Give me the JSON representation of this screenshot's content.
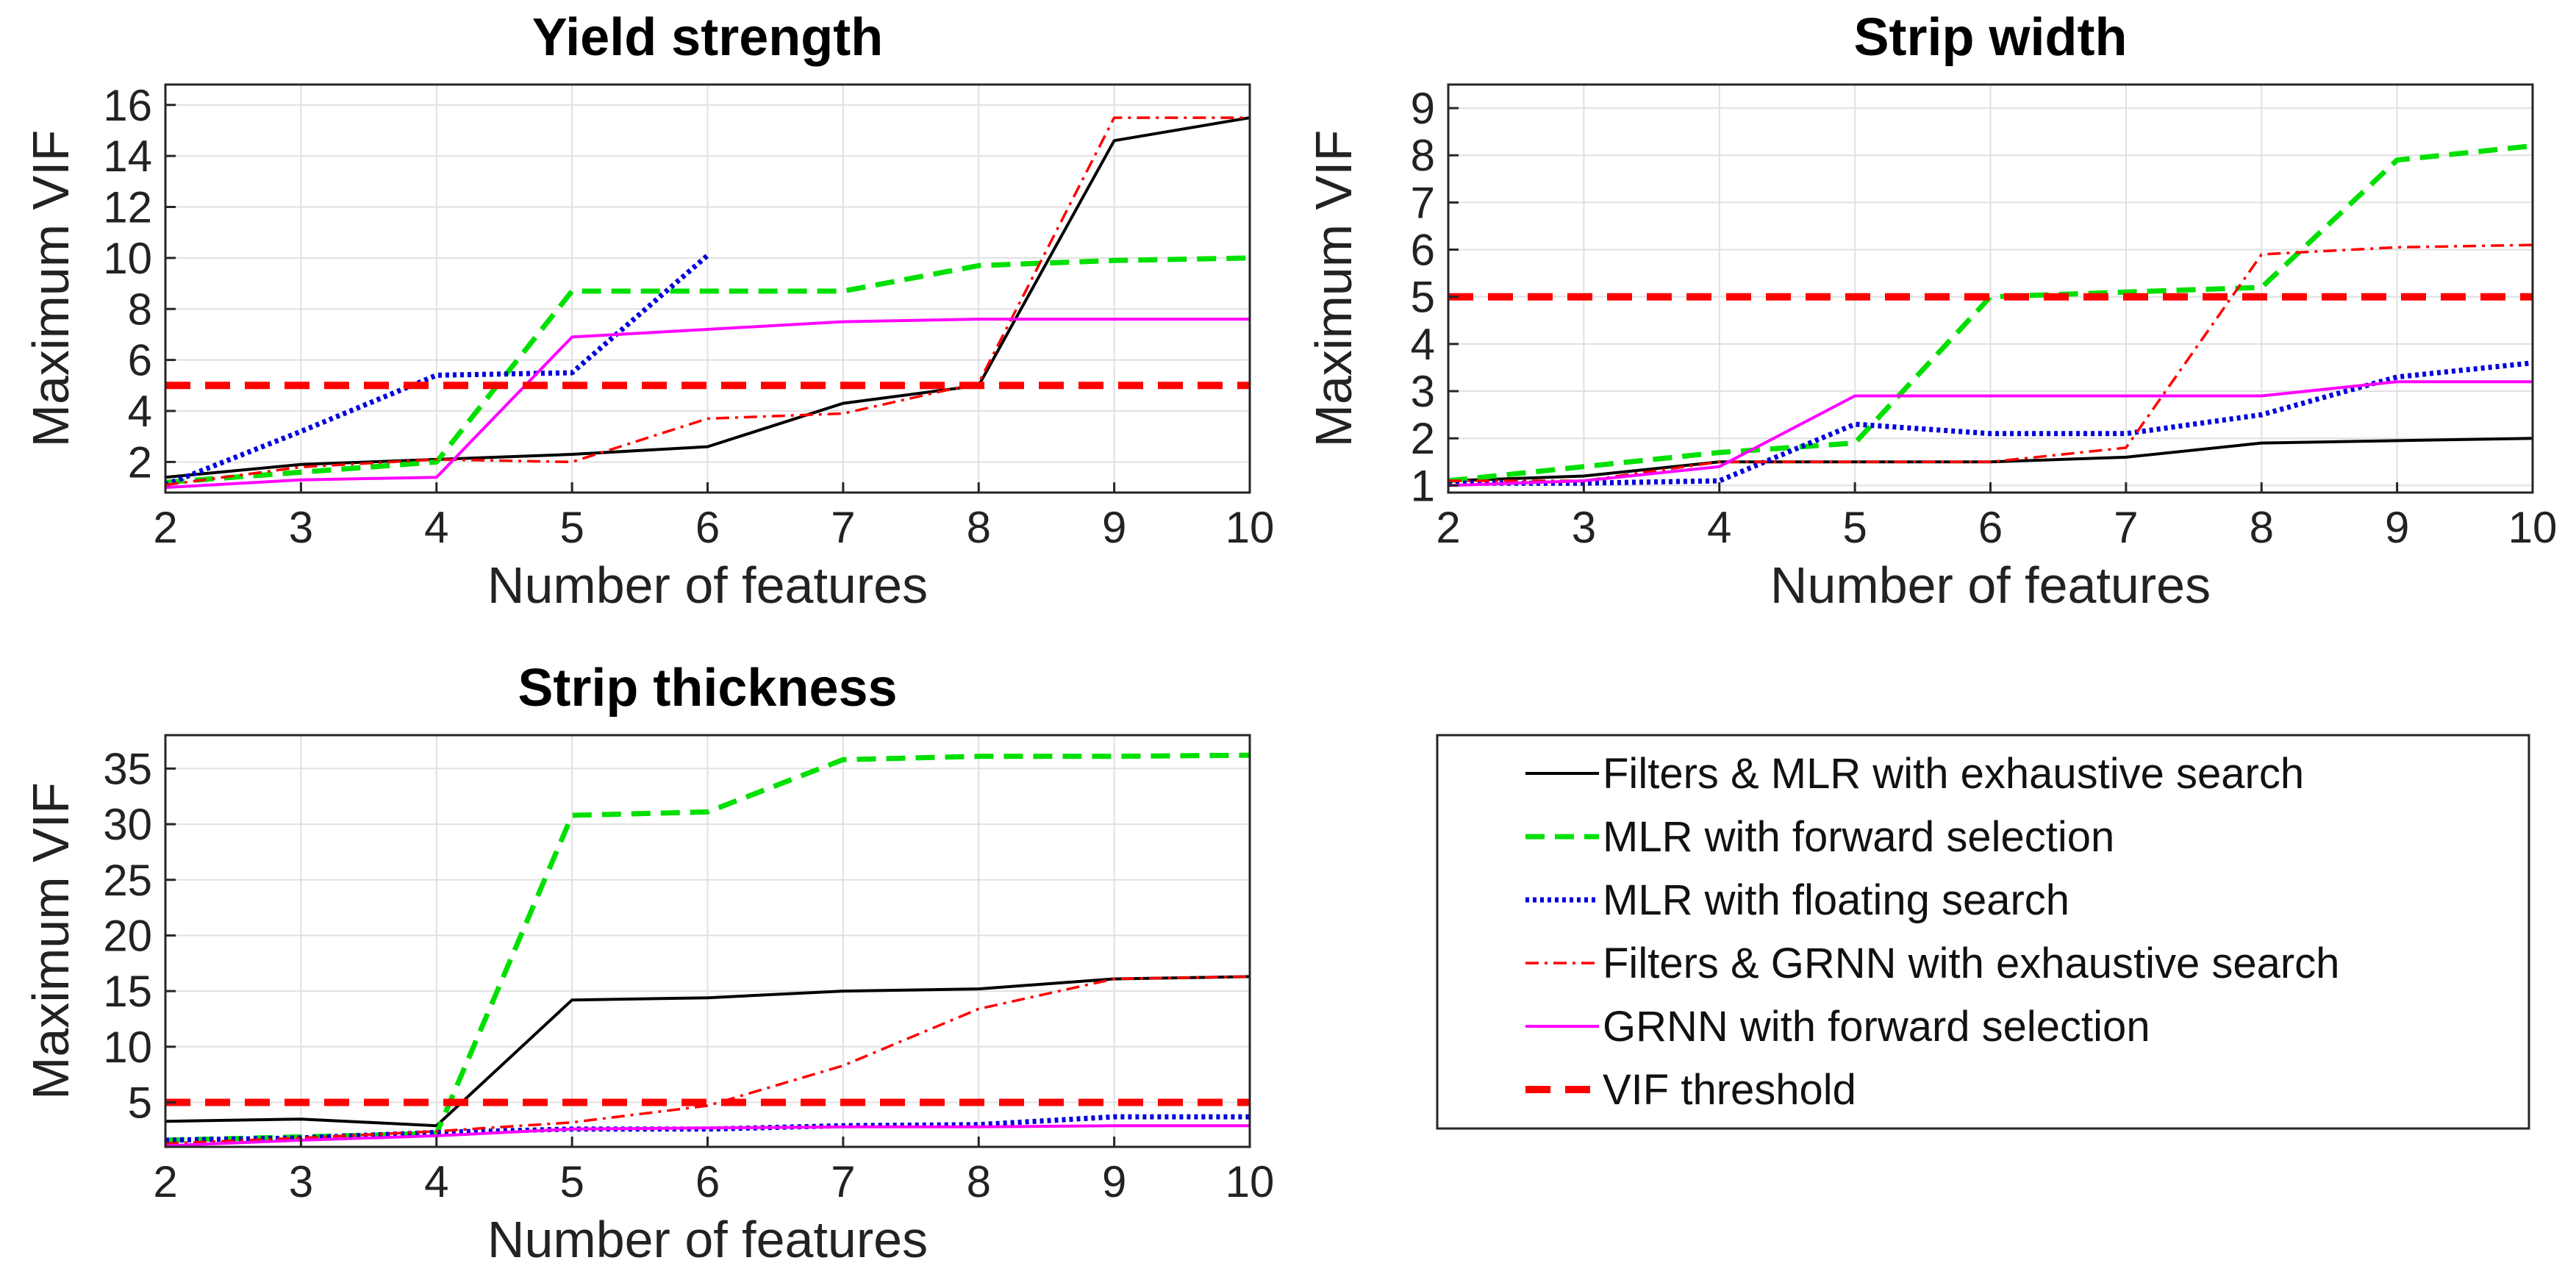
{
  "chart_data": [
    {
      "type": "line",
      "title": "Yield strength",
      "xlabel": "Number of features",
      "ylabel": "Maximum VIF",
      "x": [
        2,
        3,
        4,
        5,
        6,
        7,
        8,
        9,
        10
      ],
      "xlim": [
        2,
        10
      ],
      "ylim": [
        0.8,
        16.8
      ],
      "yticks": [
        2,
        4,
        6,
        8,
        10,
        12,
        14,
        16
      ],
      "grid": true,
      "series": [
        {
          "name": "Filters & MLR with exhaustive search",
          "values": [
            1.4,
            1.9,
            2.1,
            2.3,
            2.6,
            4.3,
            5.0,
            14.6,
            15.5
          ]
        },
        {
          "name": "MLR with forward selection",
          "values": [
            1.2,
            1.6,
            2.0,
            8.7,
            8.7,
            8.7,
            9.7,
            9.9,
            10.0
          ]
        },
        {
          "name": "MLR with floating search",
          "values": [
            1.1,
            3.2,
            5.4,
            5.5,
            10.1,
            null,
            null,
            null,
            null
          ]
        },
        {
          "name": "Filters & GRNN with exhaustive search",
          "values": [
            1.1,
            1.8,
            2.1,
            2.0,
            3.7,
            3.9,
            5.1,
            15.5,
            15.5
          ]
        },
        {
          "name": "GRNN with forward selection",
          "values": [
            1.0,
            1.3,
            1.4,
            6.9,
            7.2,
            7.5,
            7.6,
            7.6,
            7.6
          ]
        },
        {
          "name": "VIF threshold",
          "values": [
            5,
            5,
            5,
            5,
            5,
            5,
            5,
            5,
            5
          ]
        }
      ]
    },
    {
      "type": "line",
      "title": "Strip width",
      "xlabel": "Number of features",
      "ylabel": "Maximum VIF",
      "x": [
        2,
        3,
        4,
        5,
        6,
        7,
        8,
        9,
        10
      ],
      "xlim": [
        2,
        10
      ],
      "ylim": [
        0.85,
        9.5
      ],
      "yticks": [
        1,
        2,
        3,
        4,
        5,
        6,
        7,
        8,
        9
      ],
      "grid": true,
      "series": [
        {
          "name": "Filters & MLR with exhaustive search",
          "values": [
            1.1,
            1.2,
            1.5,
            1.5,
            1.5,
            1.6,
            1.9,
            1.95,
            2.0
          ]
        },
        {
          "name": "MLR with forward selection",
          "values": [
            1.1,
            1.4,
            1.7,
            1.9,
            5.0,
            5.1,
            5.2,
            7.9,
            8.2
          ]
        },
        {
          "name": "MLR with floating search",
          "values": [
            1.05,
            1.05,
            1.1,
            2.3,
            2.1,
            2.1,
            2.5,
            3.3,
            3.6
          ]
        },
        {
          "name": "Filters & GRNN with exhaustive search",
          "values": [
            1.1,
            1.1,
            1.5,
            1.5,
            1.5,
            1.8,
            5.9,
            6.05,
            6.1
          ]
        },
        {
          "name": "GRNN with forward selection",
          "values": [
            1.0,
            1.1,
            1.4,
            2.9,
            2.9,
            2.9,
            2.9,
            3.2,
            3.2
          ]
        },
        {
          "name": "VIF threshold",
          "values": [
            5,
            5,
            5,
            5,
            5,
            5,
            5,
            5,
            5
          ]
        }
      ]
    },
    {
      "type": "line",
      "title": "Strip thickness",
      "xlabel": "Number of features",
      "ylabel": "Maximum VIF",
      "x": [
        2,
        3,
        4,
        5,
        6,
        7,
        8,
        9,
        10
      ],
      "xlim": [
        2,
        10
      ],
      "ylim": [
        1,
        38
      ],
      "yticks": [
        5,
        10,
        15,
        20,
        25,
        30,
        35
      ],
      "grid": true,
      "series": [
        {
          "name": "Filters & MLR with exhaustive search",
          "values": [
            3.3,
            3.5,
            2.9,
            14.2,
            14.4,
            15.0,
            15.2,
            16.1,
            16.3
          ]
        },
        {
          "name": "MLR with forward selection",
          "values": [
            1.6,
            1.9,
            2.2,
            30.8,
            31.1,
            35.8,
            36.1,
            36.1,
            36.2
          ]
        },
        {
          "name": "MLR with floating search",
          "values": [
            1.6,
            1.8,
            2.3,
            2.6,
            2.6,
            2.9,
            3.0,
            3.7,
            3.7
          ]
        },
        {
          "name": "Filters & GRNN with exhaustive search",
          "values": [
            1.3,
            1.8,
            2.4,
            3.2,
            4.7,
            8.3,
            13.4,
            16.1,
            16.3
          ]
        },
        {
          "name": "GRNN with forward selection",
          "values": [
            1.1,
            1.6,
            2.0,
            2.6,
            2.7,
            2.8,
            2.8,
            2.9,
            2.9
          ]
        },
        {
          "name": "VIF threshold",
          "values": [
            5,
            5,
            5,
            5,
            5,
            5,
            5,
            5,
            5
          ]
        }
      ]
    }
  ],
  "legend": {
    "placement": "bottom-right",
    "entries": [
      {
        "label": "Filters & MLR with exhaustive search",
        "color": "#000000",
        "style": "solid"
      },
      {
        "label": "MLR with forward selection",
        "color": "#00e000",
        "style": "dashed"
      },
      {
        "label": "MLR with floating search",
        "color": "#0000dd",
        "style": "dotted"
      },
      {
        "label": "Filters & GRNN with exhaustive search",
        "color": "#ff0000",
        "style": "dashdot"
      },
      {
        "label": "GRNN with forward selection",
        "color": "#ff00ff",
        "style": "solid"
      },
      {
        "label": "VIF threshold",
        "color": "#ff0000",
        "style": "thick-dashed"
      }
    ]
  }
}
